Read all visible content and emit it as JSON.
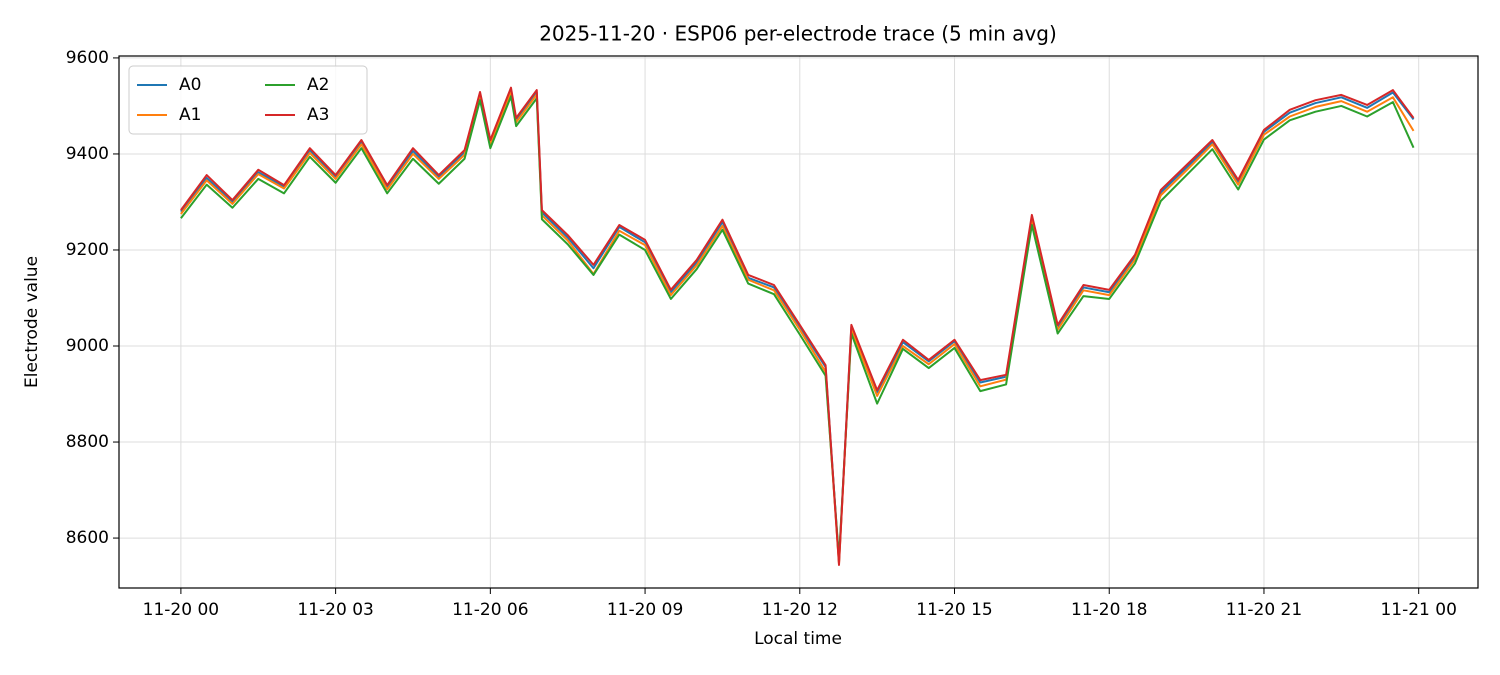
{
  "chart_data": {
    "type": "line",
    "title": "2025-11-20 · ESP06 per-electrode trace (5 min avg)",
    "x_label": "Local time",
    "y_label": "Electrode value",
    "x": [
      0,
      0.5,
      1,
      1.5,
      2,
      2.5,
      3,
      3.5,
      4,
      4.5,
      5,
      5.5,
      5.8,
      6,
      6.4,
      6.5,
      6.9,
      7,
      7.5,
      8,
      8.5,
      9,
      9.5,
      10,
      10.5,
      11,
      11.5,
      12,
      12.5,
      12.76,
      13,
      13.5,
      14,
      14.5,
      15,
      15.5,
      16,
      16.5,
      17,
      17.5,
      18,
      18.5,
      19,
      19.5,
      20,
      20.5,
      21,
      21.5,
      22,
      22.5,
      23,
      23.5,
      23.9
    ],
    "series": [
      {
        "name": "A0",
        "color": "#1f77b4",
        "values": [
          9280,
          9350,
          9300,
          9362,
          9332,
          9408,
          9352,
          9424,
          9332,
          9406,
          9352,
          9404,
          9524,
          9424,
          9532,
          9470,
          9528,
          9278,
          9226,
          9162,
          9248,
          9216,
          9112,
          9174,
          9258,
          9142,
          9122,
          9040,
          8956,
          8550,
          9040,
          8904,
          9008,
          8968,
          9010,
          8924,
          8936,
          9268,
          9040,
          9122,
          9112,
          9186,
          9320,
          9372,
          9424,
          9342,
          9446,
          9486,
          9506,
          9518,
          9496,
          9528,
          9472
        ]
      },
      {
        "name": "A1",
        "color": "#ff7f0e",
        "values": [
          9275,
          9345,
          9296,
          9358,
          9328,
          9402,
          9348,
          9420,
          9326,
          9400,
          9348,
          9398,
          9520,
          9420,
          9528,
          9466,
          9524,
          9272,
          9220,
          9150,
          9240,
          9210,
          9106,
          9168,
          9250,
          9138,
          9116,
          9034,
          8946,
          8546,
          9034,
          8896,
          9000,
          8962,
          9004,
          8916,
          8930,
          9262,
          9034,
          9116,
          9106,
          9180,
          9314,
          9366,
          9420,
          9336,
          9440,
          9478,
          9498,
          9510,
          9488,
          9518,
          9448
        ]
      },
      {
        "name": "A2",
        "color": "#2ca02c",
        "values": [
          9266,
          9336,
          9288,
          9348,
          9318,
          9394,
          9340,
          9412,
          9318,
          9390,
          9338,
          9390,
          9512,
          9412,
          9520,
          9458,
          9516,
          9264,
          9212,
          9148,
          9232,
          9200,
          9098,
          9160,
          9242,
          9130,
          9108,
          9024,
          8938,
          8558,
          9026,
          8880,
          8994,
          8954,
          8996,
          8906,
          8920,
          9252,
          9026,
          9104,
          9098,
          9172,
          9302,
          9356,
          9410,
          9326,
          9430,
          9470,
          9488,
          9500,
          9478,
          9508,
          9413
        ]
      },
      {
        "name": "A3",
        "color": "#d62728",
        "values": [
          9283,
          9356,
          9304,
          9367,
          9335,
          9412,
          9356,
          9429,
          9335,
          9412,
          9356,
          9408,
          9529,
          9429,
          9538,
          9475,
          9533,
          9283,
          9231,
          9169,
          9252,
          9221,
          9117,
          9179,
          9263,
          9148,
          9127,
          9044,
          8960,
          8544,
          9044,
          8908,
          9013,
          8971,
          9013,
          8929,
          8940,
          9273,
          9044,
          9127,
          9117,
          9190,
          9325,
          9377,
          9429,
          9346,
          9450,
          9492,
          9512,
          9523,
          9502,
          9533,
          9475
        ]
      }
    ],
    "xlim": [
      -1.2,
      25.15
    ],
    "ylim": [
      8496,
      9604
    ],
    "xticks": [
      {
        "value": 0,
        "label": "11-20 00"
      },
      {
        "value": 3,
        "label": "11-20 03"
      },
      {
        "value": 6,
        "label": "11-20 06"
      },
      {
        "value": 9,
        "label": "11-20 09"
      },
      {
        "value": 12,
        "label": "11-20 12"
      },
      {
        "value": 15,
        "label": "11-20 15"
      },
      {
        "value": 18,
        "label": "11-20 18"
      },
      {
        "value": 21,
        "label": "11-20 21"
      },
      {
        "value": 24,
        "label": "11-21 00"
      }
    ],
    "yticks": [
      8600,
      8800,
      9000,
      9200,
      9400,
      9600
    ],
    "grid": true,
    "legend": "upper-left"
  }
}
